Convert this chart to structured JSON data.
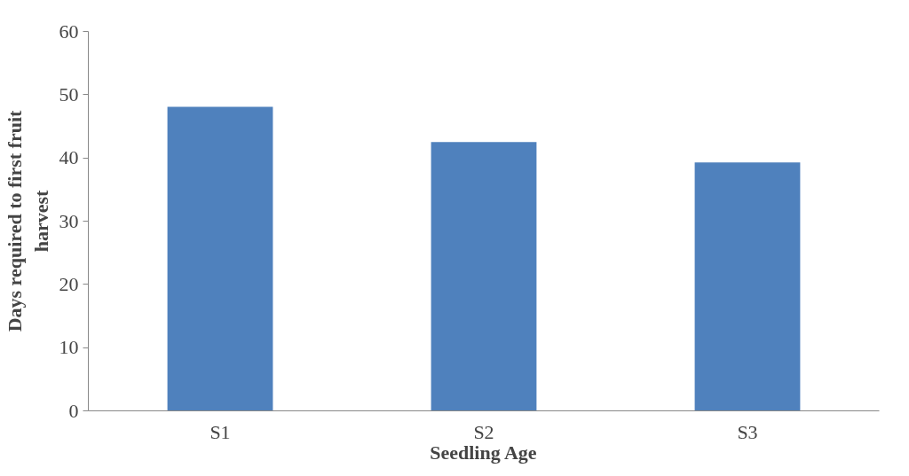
{
  "chart_data": {
    "type": "bar",
    "xlabel": "Seedling Age",
    "ylabel": "Days required to first fruit harvest",
    "categories": [
      "S1",
      "S2",
      "S3"
    ],
    "values": [
      48.1,
      42.5,
      39.3
    ],
    "color": "#4f81bd",
    "ylim": [
      0,
      60
    ],
    "yticks": [
      0,
      10,
      20,
      30,
      40,
      50,
      60
    ],
    "grid": false
  }
}
